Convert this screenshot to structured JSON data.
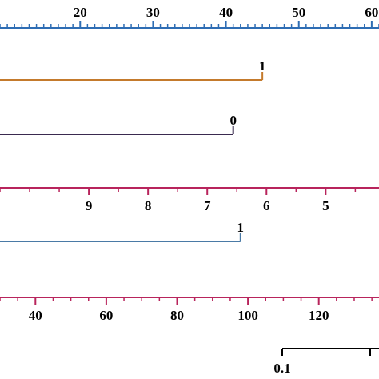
{
  "chart_data": {
    "type": "nomogram",
    "axes": [
      {
        "id": "points",
        "color": "#2e6db4",
        "domain": [
          9,
          61
        ],
        "major_ticks": [
          20,
          30,
          40,
          50,
          60
        ],
        "minor_step": 1,
        "labels": [
          "20",
          "30",
          "40",
          "50",
          "60"
        ],
        "label_position": "above"
      },
      {
        "id": "variable-1",
        "color": "#c47a2c",
        "segment": [
          0,
          1
        ],
        "end_label": "1",
        "end_value_points": 45
      },
      {
        "id": "variable-2",
        "color": "#3a2a4f",
        "segment": [
          0,
          1
        ],
        "end_label": "0",
        "end_value_points": 41
      },
      {
        "id": "variable-3",
        "color": "#b8245c",
        "domain": [
          10.5,
          4.1
        ],
        "major_ticks": [
          9,
          8,
          7,
          6,
          5
        ],
        "minor_step": 0.5,
        "labels": [
          "9",
          "8",
          "7",
          "6",
          "5"
        ],
        "label_position": "below"
      },
      {
        "id": "variable-4",
        "color": "#4a7aa6",
        "segment": [
          0,
          1
        ],
        "end_label": "1",
        "end_value_points": 42
      },
      {
        "id": "variable-5",
        "color": "#b8245c",
        "domain": [
          30,
          137
        ],
        "major_ticks": [
          40,
          60,
          80,
          100,
          120
        ],
        "minor_step": 5,
        "labels": [
          "40",
          "60",
          "80",
          "100",
          "120"
        ],
        "label_position": "below"
      },
      {
        "id": "variable-6",
        "color": "#000000",
        "start_label": "0.1"
      }
    ]
  }
}
